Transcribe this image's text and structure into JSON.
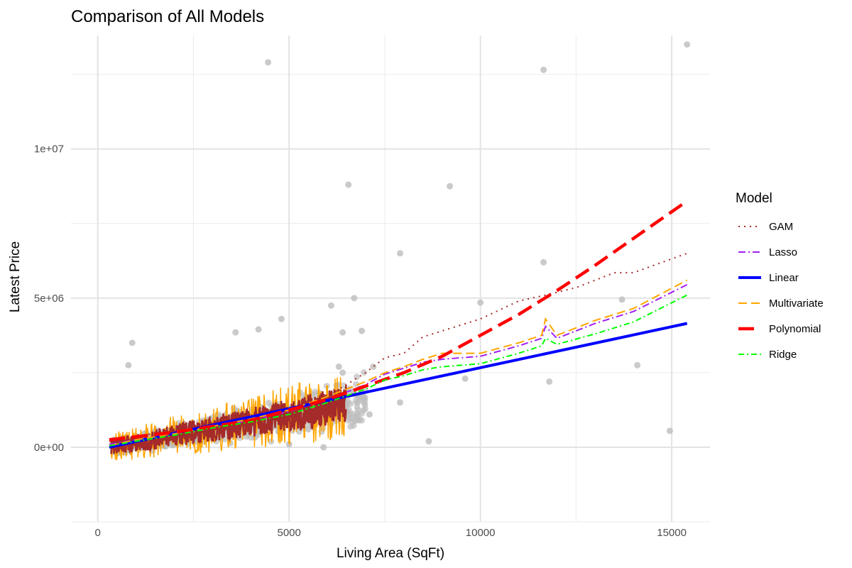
{
  "chart_data": {
    "type": "scatter",
    "title": "Comparison of All Models",
    "xlabel": "Living Area (SqFt)",
    "ylabel": "Latest Price",
    "xlim": [
      -700,
      16000
    ],
    "ylim": [
      -2500000,
      13800000
    ],
    "x_ticks": [
      0,
      5000,
      10000,
      15000
    ],
    "x_tick_labels": [
      "0",
      "5000",
      "10000",
      "15000"
    ],
    "y_ticks": [
      0,
      5000000,
      10000000
    ],
    "y_tick_labels": [
      "0e+00",
      "5e+06",
      "1e+07"
    ],
    "grid": true,
    "legend_title": "Model",
    "legend_position": "right",
    "point_color": "#bdbdbd",
    "highlight_points": [
      {
        "x": 4450,
        "y": 12900000
      },
      {
        "x": 11650,
        "y": 12650000
      },
      {
        "x": 15400,
        "y": 13500000
      },
      {
        "x": 6550,
        "y": 8800000
      },
      {
        "x": 9200,
        "y": 8750000
      },
      {
        "x": 7900,
        "y": 6500000
      },
      {
        "x": 11650,
        "y": 6200000
      },
      {
        "x": 13700,
        "y": 4950000
      },
      {
        "x": 10000,
        "y": 4850000
      },
      {
        "x": 6700,
        "y": 5000000
      },
      {
        "x": 14100,
        "y": 2750000
      },
      {
        "x": 11800,
        "y": 2200000
      },
      {
        "x": 14950,
        "y": 550000
      },
      {
        "x": 8650,
        "y": 200000
      },
      {
        "x": 9600,
        "y": 2300000
      },
      {
        "x": 7900,
        "y": 1500000
      },
      {
        "x": 6100,
        "y": 4750000
      },
      {
        "x": 4800,
        "y": 4300000
      },
      {
        "x": 3600,
        "y": 3850000
      },
      {
        "x": 4200,
        "y": 3950000
      },
      {
        "x": 6400,
        "y": 3850000
      },
      {
        "x": 6900,
        "y": 3900000
      },
      {
        "x": 900,
        "y": 3500000
      },
      {
        "x": 800,
        "y": 2750000
      },
      {
        "x": 7100,
        "y": 1100000
      },
      {
        "x": 6500,
        "y": 1450000
      },
      {
        "x": 6400,
        "y": 2500000
      },
      {
        "x": 5000,
        "y": 100000
      },
      {
        "x": 5900,
        "y": 0
      },
      {
        "x": 5500,
        "y": 600000
      },
      {
        "x": 7200,
        "y": 2700000
      },
      {
        "x": 6300,
        "y": 2700000
      }
    ],
    "series": [
      {
        "name": "GAM",
        "color": "#a52a2a",
        "dash": "2,6",
        "width": 2,
        "x": [
          300,
          1000,
          2000,
          3000,
          4000,
          5000,
          6000,
          7000,
          7500,
          8000,
          8500,
          9000,
          10000,
          11000,
          11700,
          12500,
          13500,
          14000,
          15400
        ],
        "y": [
          200000,
          350000,
          600000,
          800000,
          1000000,
          1300000,
          1700000,
          2500000,
          3000000,
          3150000,
          3700000,
          3900000,
          4300000,
          4900000,
          5100000,
          5350000,
          5850000,
          5850000,
          6500000
        ]
      },
      {
        "name": "Lasso",
        "color": "#a020f0",
        "dash": "10,4,2,4",
        "width": 2,
        "x": [
          300,
          1000,
          2000,
          3000,
          4000,
          5000,
          6000,
          7000,
          7500,
          8000,
          8500,
          9000,
          10000,
          11000,
          11600,
          11700,
          12000,
          13000,
          14000,
          15400
        ],
        "y": [
          100000,
          250000,
          450000,
          700000,
          900000,
          1200000,
          1600000,
          2100000,
          2450000,
          2650000,
          2850000,
          2950000,
          3050000,
          3400000,
          3650000,
          4050000,
          3650000,
          4150000,
          4550000,
          5450000
        ]
      },
      {
        "name": "Linear",
        "color": "#0000ff",
        "dash": "",
        "width": 4,
        "x": [
          300,
          15400
        ],
        "y": [
          0,
          4150000
        ]
      },
      {
        "name": "Multivariate",
        "color": "#ffa500",
        "dash": "12,6",
        "width": 2,
        "x": [
          300,
          1000,
          2000,
          3000,
          4000,
          5000,
          6000,
          7000,
          7500,
          8000,
          8500,
          9000,
          10000,
          11000,
          11600,
          11700,
          12000,
          13000,
          14000,
          15400
        ],
        "y": [
          50000,
          250000,
          450000,
          700000,
          950000,
          1250000,
          1700000,
          2200000,
          2500000,
          2700000,
          2950000,
          3150000,
          3150000,
          3500000,
          3750000,
          4300000,
          3750000,
          4250000,
          4650000,
          5600000
        ]
      },
      {
        "name": "Polynomial",
        "color": "#ff0000",
        "dash": "22,10",
        "width": 4.5,
        "x": [
          300,
          2000,
          4000,
          6000,
          7000,
          8000,
          9000,
          10000,
          11000,
          12000,
          13000,
          14000,
          15400
        ],
        "y": [
          250000,
          500000,
          900000,
          1600000,
          2050000,
          2500000,
          3050000,
          3750000,
          4450000,
          5250000,
          6100000,
          7000000,
          8250000
        ]
      },
      {
        "name": "Ridge",
        "color": "#00ff00",
        "dash": "8,4,2,4",
        "width": 2,
        "x": [
          300,
          1000,
          2000,
          3000,
          4000,
          5000,
          6000,
          7000,
          7500,
          8000,
          8500,
          9000,
          10000,
          11000,
          11600,
          11700,
          12000,
          13000,
          14000,
          15400
        ],
        "y": [
          50000,
          200000,
          400000,
          650000,
          850000,
          1100000,
          1500000,
          1950000,
          2250000,
          2400000,
          2600000,
          2700000,
          2800000,
          3150000,
          3400000,
          3650000,
          3450000,
          3800000,
          4200000,
          5100000
        ]
      }
    ]
  }
}
